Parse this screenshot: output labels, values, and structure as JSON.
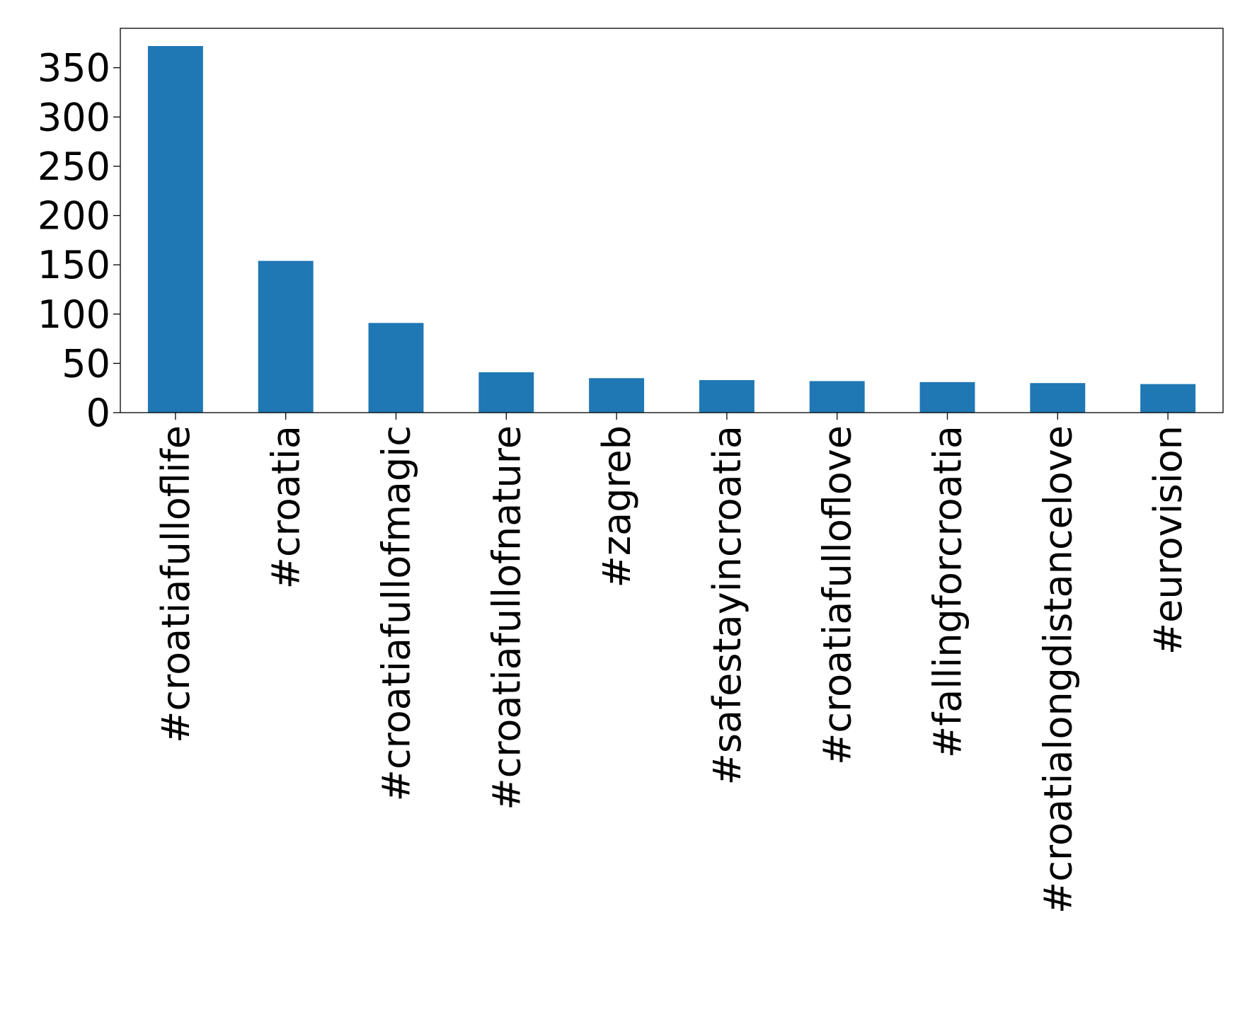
{
  "chart_data": {
    "type": "bar",
    "categories": [
      "#croatiafulloflife",
      "#croatia",
      "#croatiafullofmagic",
      "#croatiafullofnature",
      "#zagreb",
      "#safestayincroatia",
      "#croatiafulloflove",
      "#fallingforcroatia",
      "#croatialongdistancelove",
      "#eurovision"
    ],
    "values": [
      372,
      154,
      91,
      41,
      35,
      33,
      32,
      31,
      30,
      29
    ],
    "title": "",
    "xlabel": "",
    "ylabel": "",
    "ylim": [
      0,
      390
    ],
    "yticks": [
      0,
      50,
      100,
      150,
      200,
      250,
      300,
      350
    ],
    "grid": false,
    "legend": "none",
    "colors": {
      "bar": "#1f77b4",
      "axis": "#000000"
    }
  }
}
